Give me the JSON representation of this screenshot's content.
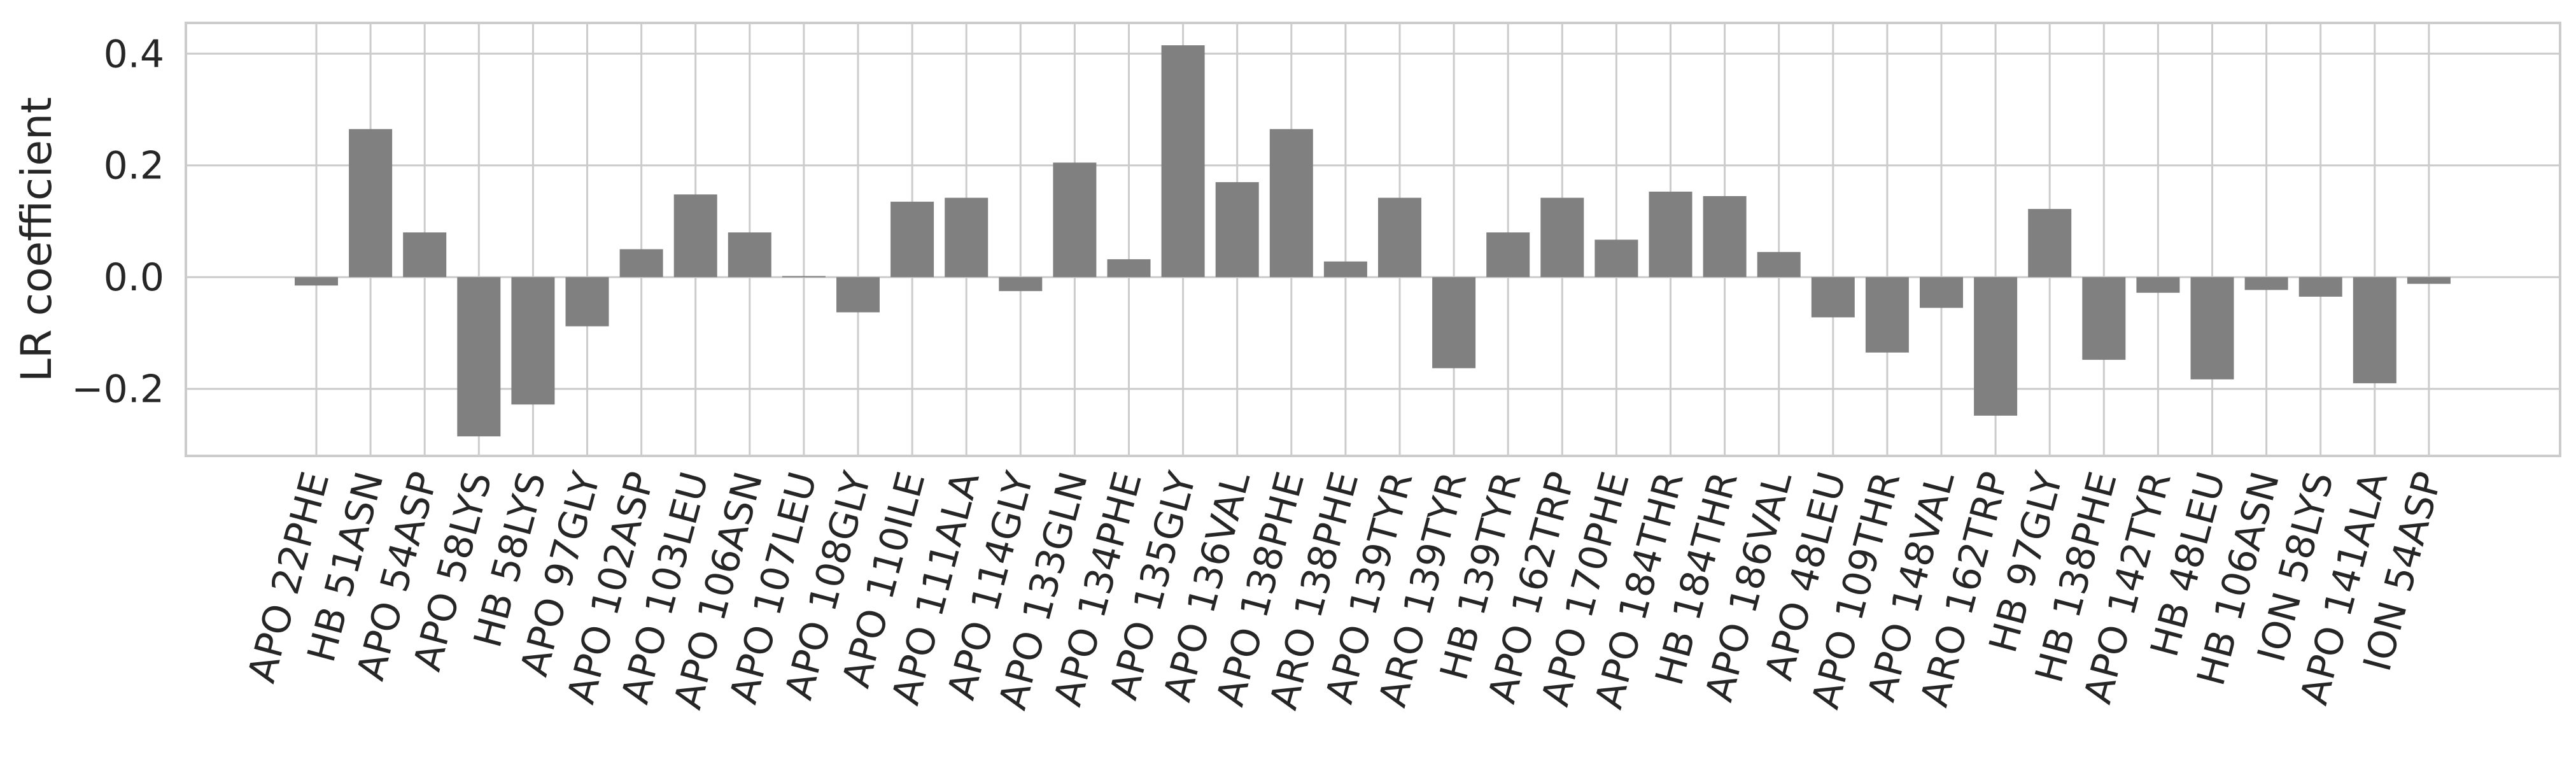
{
  "chart_data": {
    "type": "bar",
    "ylabel": "LR coefficient",
    "xlabel": "",
    "ylim": [
      -0.32,
      0.455
    ],
    "yticks": [
      -0.2,
      0.0,
      0.2,
      0.4
    ],
    "ytick_labels": [
      "−0.2",
      "0.0",
      "0.2",
      "0.4"
    ],
    "grid": true,
    "bar_color": "#808080",
    "grid_color": "#cccccc",
    "categories": [
      "APO 22PHE",
      "HB 51ASN",
      "APO 54ASP",
      "APO 58LYS",
      "HB 58LYS",
      "APO 97GLY",
      "APO 102ASP",
      "APO 103LEU",
      "APO 106ASN",
      "APO 107LEU",
      "APO 108GLY",
      "APO 110ILE",
      "APO 111ALA",
      "APO 114GLY",
      "APO 133GLN",
      "APO 134PHE",
      "APO 135GLY",
      "APO 136VAL",
      "APO 138PHE",
      "ARO 138PHE",
      "APO 139TYR",
      "ARO 139TYR",
      "HB 139TYR",
      "APO 162TRP",
      "APO 170PHE",
      "APO 184THR",
      "HB 184THR",
      "APO 186VAL",
      "APO 48LEU",
      "APO 109THR",
      "APO 148VAL",
      "ARO 162TRP",
      "HB 97GLY",
      "HB 138PHE",
      "APO 142TYR",
      "HB 48LEU",
      "HB 106ASN",
      "ION 58LYS",
      "APO 141ALA",
      "ION 54ASP"
    ],
    "values": [
      -0.015,
      0.265,
      0.08,
      -0.285,
      -0.228,
      -0.088,
      0.05,
      0.148,
      0.08,
      0.002,
      -0.063,
      0.135,
      0.142,
      -0.025,
      0.205,
      0.032,
      0.415,
      0.17,
      0.265,
      0.028,
      0.142,
      -0.163,
      0.08,
      0.142,
      0.067,
      0.153,
      0.145,
      0.045,
      -0.072,
      -0.135,
      -0.055,
      -0.248,
      0.122,
      -0.148,
      -0.028,
      -0.183,
      -0.023,
      -0.035,
      -0.19,
      -0.012
    ]
  }
}
